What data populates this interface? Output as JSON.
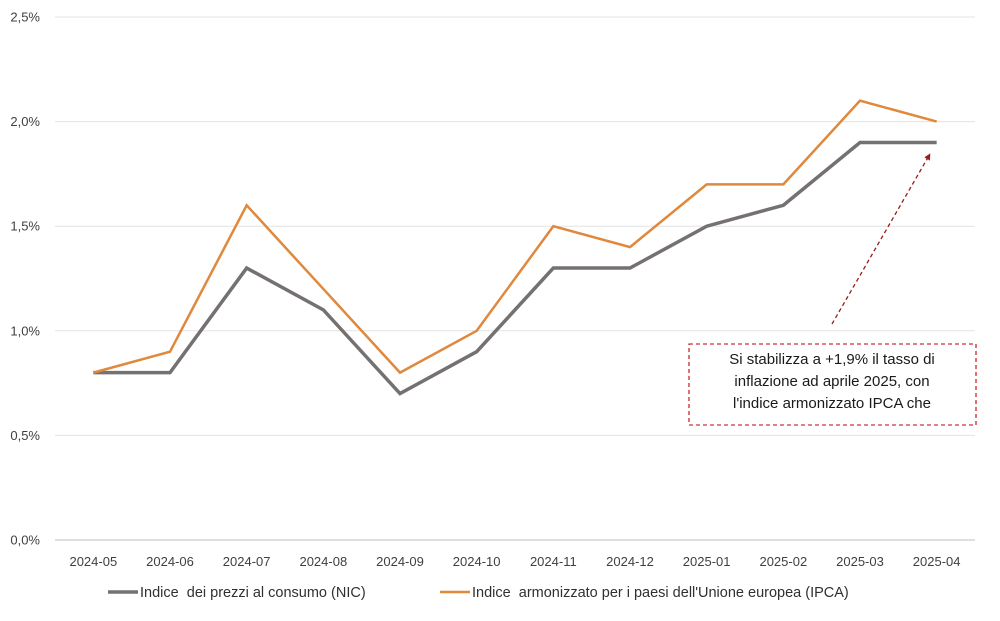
{
  "chart_data": {
    "type": "line",
    "categories": [
      "2024-05",
      "2024-06",
      "2024-07",
      "2024-08",
      "2024-09",
      "2024-10",
      "2024-11",
      "2024-12",
      "2025-01",
      "2025-02",
      "2025-03",
      "2025-04"
    ],
    "series": [
      {
        "name": "Indice  dei prezzi al consumo (NIC)",
        "color": "#767171",
        "values": [
          0.8,
          0.8,
          1.3,
          1.1,
          0.7,
          0.9,
          1.3,
          1.3,
          1.5,
          1.6,
          1.9,
          1.9
        ]
      },
      {
        "name": "Indice  armonizzato per i paesi dell'Unione europea (IPCA)",
        "color": "#E0883C",
        "values": [
          0.8,
          0.9,
          1.6,
          1.2,
          0.8,
          1.0,
          1.5,
          1.4,
          1.7,
          1.7,
          2.1,
          2.0
        ]
      }
    ],
    "ylim": [
      0,
      2.5
    ],
    "yticks": [
      0,
      0.5,
      1.0,
      1.5,
      2.0,
      2.5
    ],
    "ytick_labels": [
      "0,0%",
      "0,5%",
      "1,0%",
      "1,5%",
      "2,0%",
      "2,5%"
    ],
    "grid": true,
    "legend_position": "bottom",
    "annotation": {
      "lines": [
        "Si stabilizza a +1,9% il tasso di",
        "inflazione ad aprile 2025, con",
        "l'indice armonizzato IPCA che"
      ],
      "border_color": "#C00000",
      "arrow_color": "#9B1B1B",
      "points_to": {
        "category": "2025-04",
        "value": 1.9
      }
    }
  }
}
